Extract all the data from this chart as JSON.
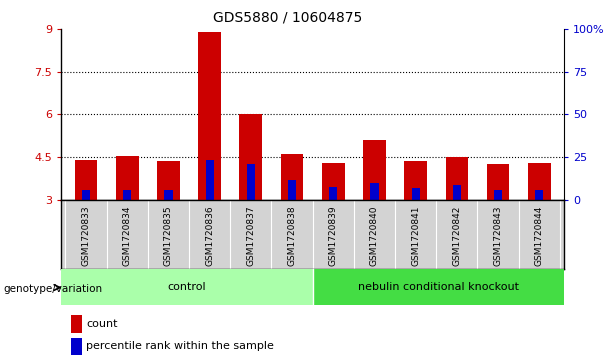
{
  "title": "GDS5880 / 10604875",
  "samples": [
    "GSM1720833",
    "GSM1720834",
    "GSM1720835",
    "GSM1720836",
    "GSM1720837",
    "GSM1720838",
    "GSM1720839",
    "GSM1720840",
    "GSM1720841",
    "GSM1720842",
    "GSM1720843",
    "GSM1720844"
  ],
  "count_values": [
    4.4,
    4.55,
    4.35,
    8.9,
    6.0,
    4.6,
    4.3,
    5.1,
    4.35,
    4.5,
    4.25,
    4.3
  ],
  "percentile_values": [
    3.35,
    3.35,
    3.35,
    4.4,
    4.25,
    3.7,
    3.45,
    3.6,
    3.4,
    3.5,
    3.35,
    3.35
  ],
  "baseline": 3.0,
  "ylim_left": [
    3.0,
    9.0
  ],
  "yticks_left": [
    3,
    4.5,
    6,
    7.5,
    9
  ],
  "ytick_labels_left": [
    "3",
    "4.5",
    "6",
    "7.5",
    "9"
  ],
  "ylim_right": [
    0,
    100
  ],
  "yticks_right": [
    0,
    25,
    50,
    75,
    100
  ],
  "ytick_labels_right": [
    "0",
    "25",
    "50",
    "75",
    "100%"
  ],
  "bar_color": "#cc0000",
  "percentile_color": "#0000cc",
  "bar_width": 0.55,
  "blue_bar_width": 0.2,
  "grid_lines": [
    4.5,
    6.0,
    7.5
  ],
  "ctrl_color": "#aaffaa",
  "nko_color": "#44dd44",
  "group_label": "genotype/variation",
  "legend_count_label": "count",
  "legend_percentile_label": "percentile rank within the sample",
  "tick_bg_color": "#d3d3d3",
  "n_control": 6,
  "n_knockout": 6
}
